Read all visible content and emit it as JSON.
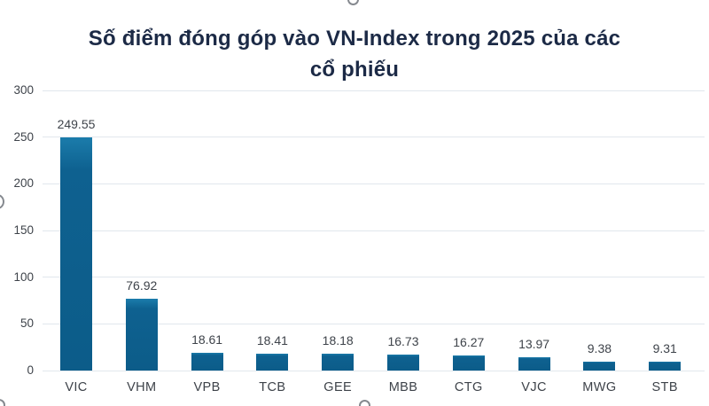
{
  "title": {
    "line1": "Số điểm đóng góp vào VN-Index trong 2025 của các",
    "line2": "cổ phiếu"
  },
  "colors": {
    "title_text": "#1c2a46",
    "axis_text": "#3e434a",
    "bar_main": "#0e6190",
    "bar_top_highlight": "#1b7cab",
    "bar_bottom": "#0c5c89",
    "gridline": "#e1e7ed",
    "background": "#ffffff",
    "clipped_glyph": "#85898f"
  },
  "chart_data": {
    "type": "bar",
    "title": "Số điểm đóng góp vào VN-Index trong 2025 của các cổ phiếu",
    "categories": [
      "VIC",
      "VHM",
      "VPB",
      "TCB",
      "GEE",
      "MBB",
      "CTG",
      "VJC",
      "MWG",
      "STB"
    ],
    "values": [
      249.55,
      76.92,
      18.61,
      18.41,
      18.18,
      16.73,
      16.27,
      13.97,
      9.38,
      9.31
    ],
    "value_labels": [
      "249.55",
      "76.92",
      "18.61",
      "18.41",
      "18.18",
      "16.73",
      "16.27",
      "13.97",
      "9.38",
      "9.31"
    ],
    "xlabel": "",
    "ylabel": "",
    "ylim": [
      0,
      300
    ],
    "yticks": [
      0,
      50,
      100,
      150,
      200,
      250,
      300
    ],
    "grid": true,
    "legend": false,
    "data_labels": true
  }
}
